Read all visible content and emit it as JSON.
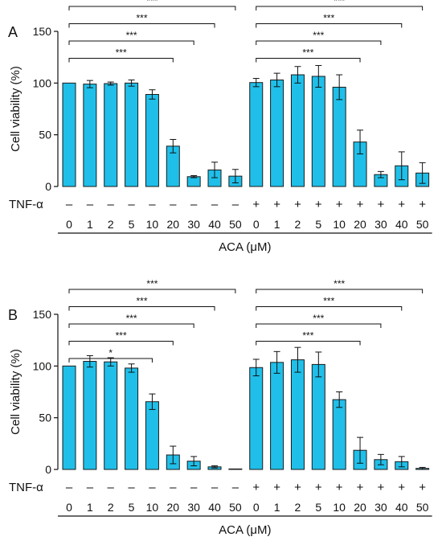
{
  "bar_color": "#1fbfe9",
  "bar_stroke": "#1b1b1b",
  "chart_data": [
    {
      "type": "bar",
      "panel_label": "A",
      "ylabel": "Cell viability (%)",
      "xlabel": "ACA (μM)",
      "ylim": [
        0,
        150
      ],
      "y_ticks": [
        "0",
        "50",
        "100",
        "150"
      ],
      "row_label": "TNF-α",
      "categories": [
        "0",
        "1",
        "2",
        "5",
        "10",
        "20",
        "30",
        "40",
        "50",
        "0",
        "1",
        "2",
        "5",
        "10",
        "20",
        "30",
        "40",
        "50"
      ],
      "tnf": [
        "–",
        "–",
        "–",
        "–",
        "–",
        "–",
        "–",
        "–",
        "–",
        "+",
        "+",
        "+",
        "+",
        "+",
        "+",
        "+",
        "+",
        "+"
      ],
      "values": [
        100,
        99,
        99.5,
        100,
        89,
        39,
        9.5,
        16,
        10,
        100.5,
        103,
        108,
        106.5,
        96,
        43,
        11.5,
        20,
        13
      ],
      "errors": [
        0,
        3.5,
        1.5,
        3,
        4.5,
        6.5,
        1,
        7.5,
        6.5,
        4,
        6.5,
        8,
        10.5,
        12,
        11.5,
        3,
        13.5,
        10
      ],
      "significance": [
        {
          "from": 0,
          "to": 5,
          "label": "***"
        },
        {
          "from": 0,
          "to": 6,
          "label": "***"
        },
        {
          "from": 0,
          "to": 7,
          "label": "***"
        },
        {
          "from": 0,
          "to": 8,
          "label": "***"
        },
        {
          "from": 9,
          "to": 14,
          "label": "***"
        },
        {
          "from": 9,
          "to": 15,
          "label": "***"
        },
        {
          "from": 9,
          "to": 16,
          "label": "***"
        },
        {
          "from": 9,
          "to": 17,
          "label": "***"
        }
      ]
    },
    {
      "type": "bar",
      "panel_label": "B",
      "ylabel": "Cell viability (%)",
      "xlabel": "ACA (μM)",
      "ylim": [
        0,
        150
      ],
      "y_ticks": [
        "0",
        "50",
        "100",
        "150"
      ],
      "row_label": "TNF-α",
      "categories": [
        "0",
        "1",
        "2",
        "5",
        "10",
        "20",
        "30",
        "40",
        "50",
        "0",
        "1",
        "2",
        "5",
        "10",
        "20",
        "30",
        "40",
        "50"
      ],
      "tnf": [
        "–",
        "–",
        "–",
        "–",
        "–",
        "–",
        "–",
        "–",
        "–",
        "+",
        "+",
        "+",
        "+",
        "+",
        "+",
        "+",
        "+",
        "+"
      ],
      "values": [
        100,
        104.5,
        104,
        98,
        65.5,
        14,
        8,
        2.5,
        0.5,
        98.5,
        103.5,
        106,
        101.5,
        67.5,
        18.5,
        9.5,
        7.5,
        1
      ],
      "errors": [
        0,
        5.5,
        4,
        4,
        7.5,
        8.5,
        4.5,
        1,
        0,
        8,
        10.5,
        12,
        12,
        7.5,
        12.5,
        5,
        5,
        1
      ],
      "significance": [
        {
          "from": 0,
          "to": 4,
          "label": "*"
        },
        {
          "from": 0,
          "to": 5,
          "label": "***"
        },
        {
          "from": 0,
          "to": 6,
          "label": "***"
        },
        {
          "from": 0,
          "to": 7,
          "label": "***"
        },
        {
          "from": 0,
          "to": 8,
          "label": "***"
        },
        {
          "from": 9,
          "to": 14,
          "label": "***"
        },
        {
          "from": 9,
          "to": 15,
          "label": "***"
        },
        {
          "from": 9,
          "to": 16,
          "label": "***"
        },
        {
          "from": 9,
          "to": 17,
          "label": "***"
        }
      ]
    }
  ]
}
